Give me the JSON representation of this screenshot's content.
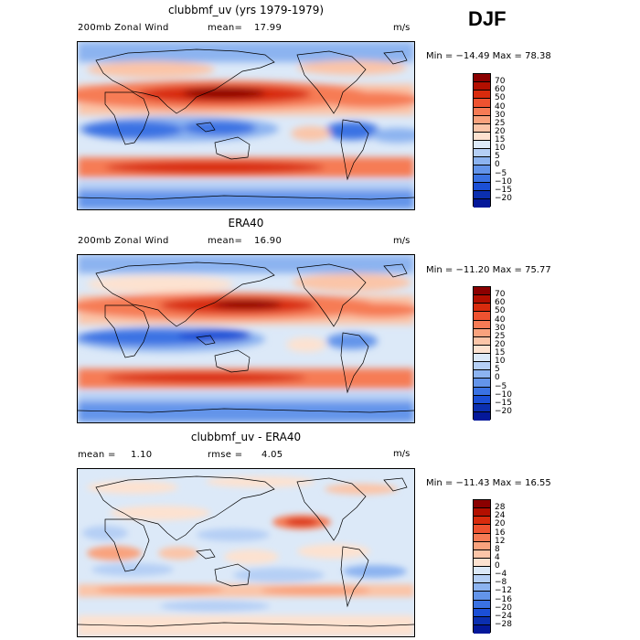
{
  "season": "DJF",
  "panels": [
    {
      "title": "clubbmf_uv (yrs 1979-1979)",
      "left_label": "200mb Zonal Wind",
      "stat_label": "mean=",
      "stat_value": "17.99",
      "stat2_label": "",
      "stat2_value": "",
      "units": "m/s",
      "minmax": "Min = −14.49 Max =  78.38",
      "colorbar": {
        "labels": [
          "70",
          "60",
          "50",
          "40",
          "30",
          "25",
          "20",
          "15",
          "10",
          "5",
          "0",
          "−5",
          "−10",
          "−15",
          "−20"
        ],
        "colors": [
          "#8b0000",
          "#b30f00",
          "#d82b0d",
          "#ee5230",
          "#f67b55",
          "#f9a27d",
          "#fbc5a8",
          "#fde2d0",
          "#dce9f8",
          "#b5cff5",
          "#8cb3f0",
          "#6394ea",
          "#3a72e3",
          "#1b4fd6",
          "#0b2fb0",
          "#04189a"
        ]
      }
    },
    {
      "title": "ERA40",
      "left_label": "200mb Zonal Wind",
      "stat_label": "mean=",
      "stat_value": "16.90",
      "stat2_label": "",
      "stat2_value": "",
      "units": "m/s",
      "minmax": "Min = −11.20 Max =  75.77",
      "colorbar": {
        "labels": [
          "70",
          "60",
          "50",
          "40",
          "30",
          "25",
          "20",
          "15",
          "10",
          "5",
          "0",
          "−5",
          "−10",
          "−15",
          "−20"
        ],
        "colors": [
          "#8b0000",
          "#b30f00",
          "#d82b0d",
          "#ee5230",
          "#f67b55",
          "#f9a27d",
          "#fbc5a8",
          "#fde2d0",
          "#dce9f8",
          "#b5cff5",
          "#8cb3f0",
          "#6394ea",
          "#3a72e3",
          "#1b4fd6",
          "#0b2fb0",
          "#04189a"
        ]
      }
    },
    {
      "title": "clubbmf_uv - ERA40",
      "left_label": "mean =",
      "stat_label": "1.10",
      "stat_value": "",
      "stat2_label": "rmse =",
      "stat2_value": "4.05",
      "units": "m/s",
      "minmax": "Min = −11.43 Max =  16.55",
      "colorbar": {
        "labels": [
          "28",
          "24",
          "20",
          "16",
          "12",
          "8",
          "4",
          "0",
          "−4",
          "−8",
          "−12",
          "−16",
          "−20",
          "−24",
          "−28"
        ],
        "colors": [
          "#8b0000",
          "#b30f00",
          "#d82b0d",
          "#ee5230",
          "#f67b55",
          "#f9a27d",
          "#fbc5a8",
          "#fde2d0",
          "#dce9f8",
          "#b5cff5",
          "#8cb3f0",
          "#6394ea",
          "#3a72e3",
          "#1b4fd6",
          "#0b2fb0",
          "#04189a"
        ]
      }
    }
  ]
}
